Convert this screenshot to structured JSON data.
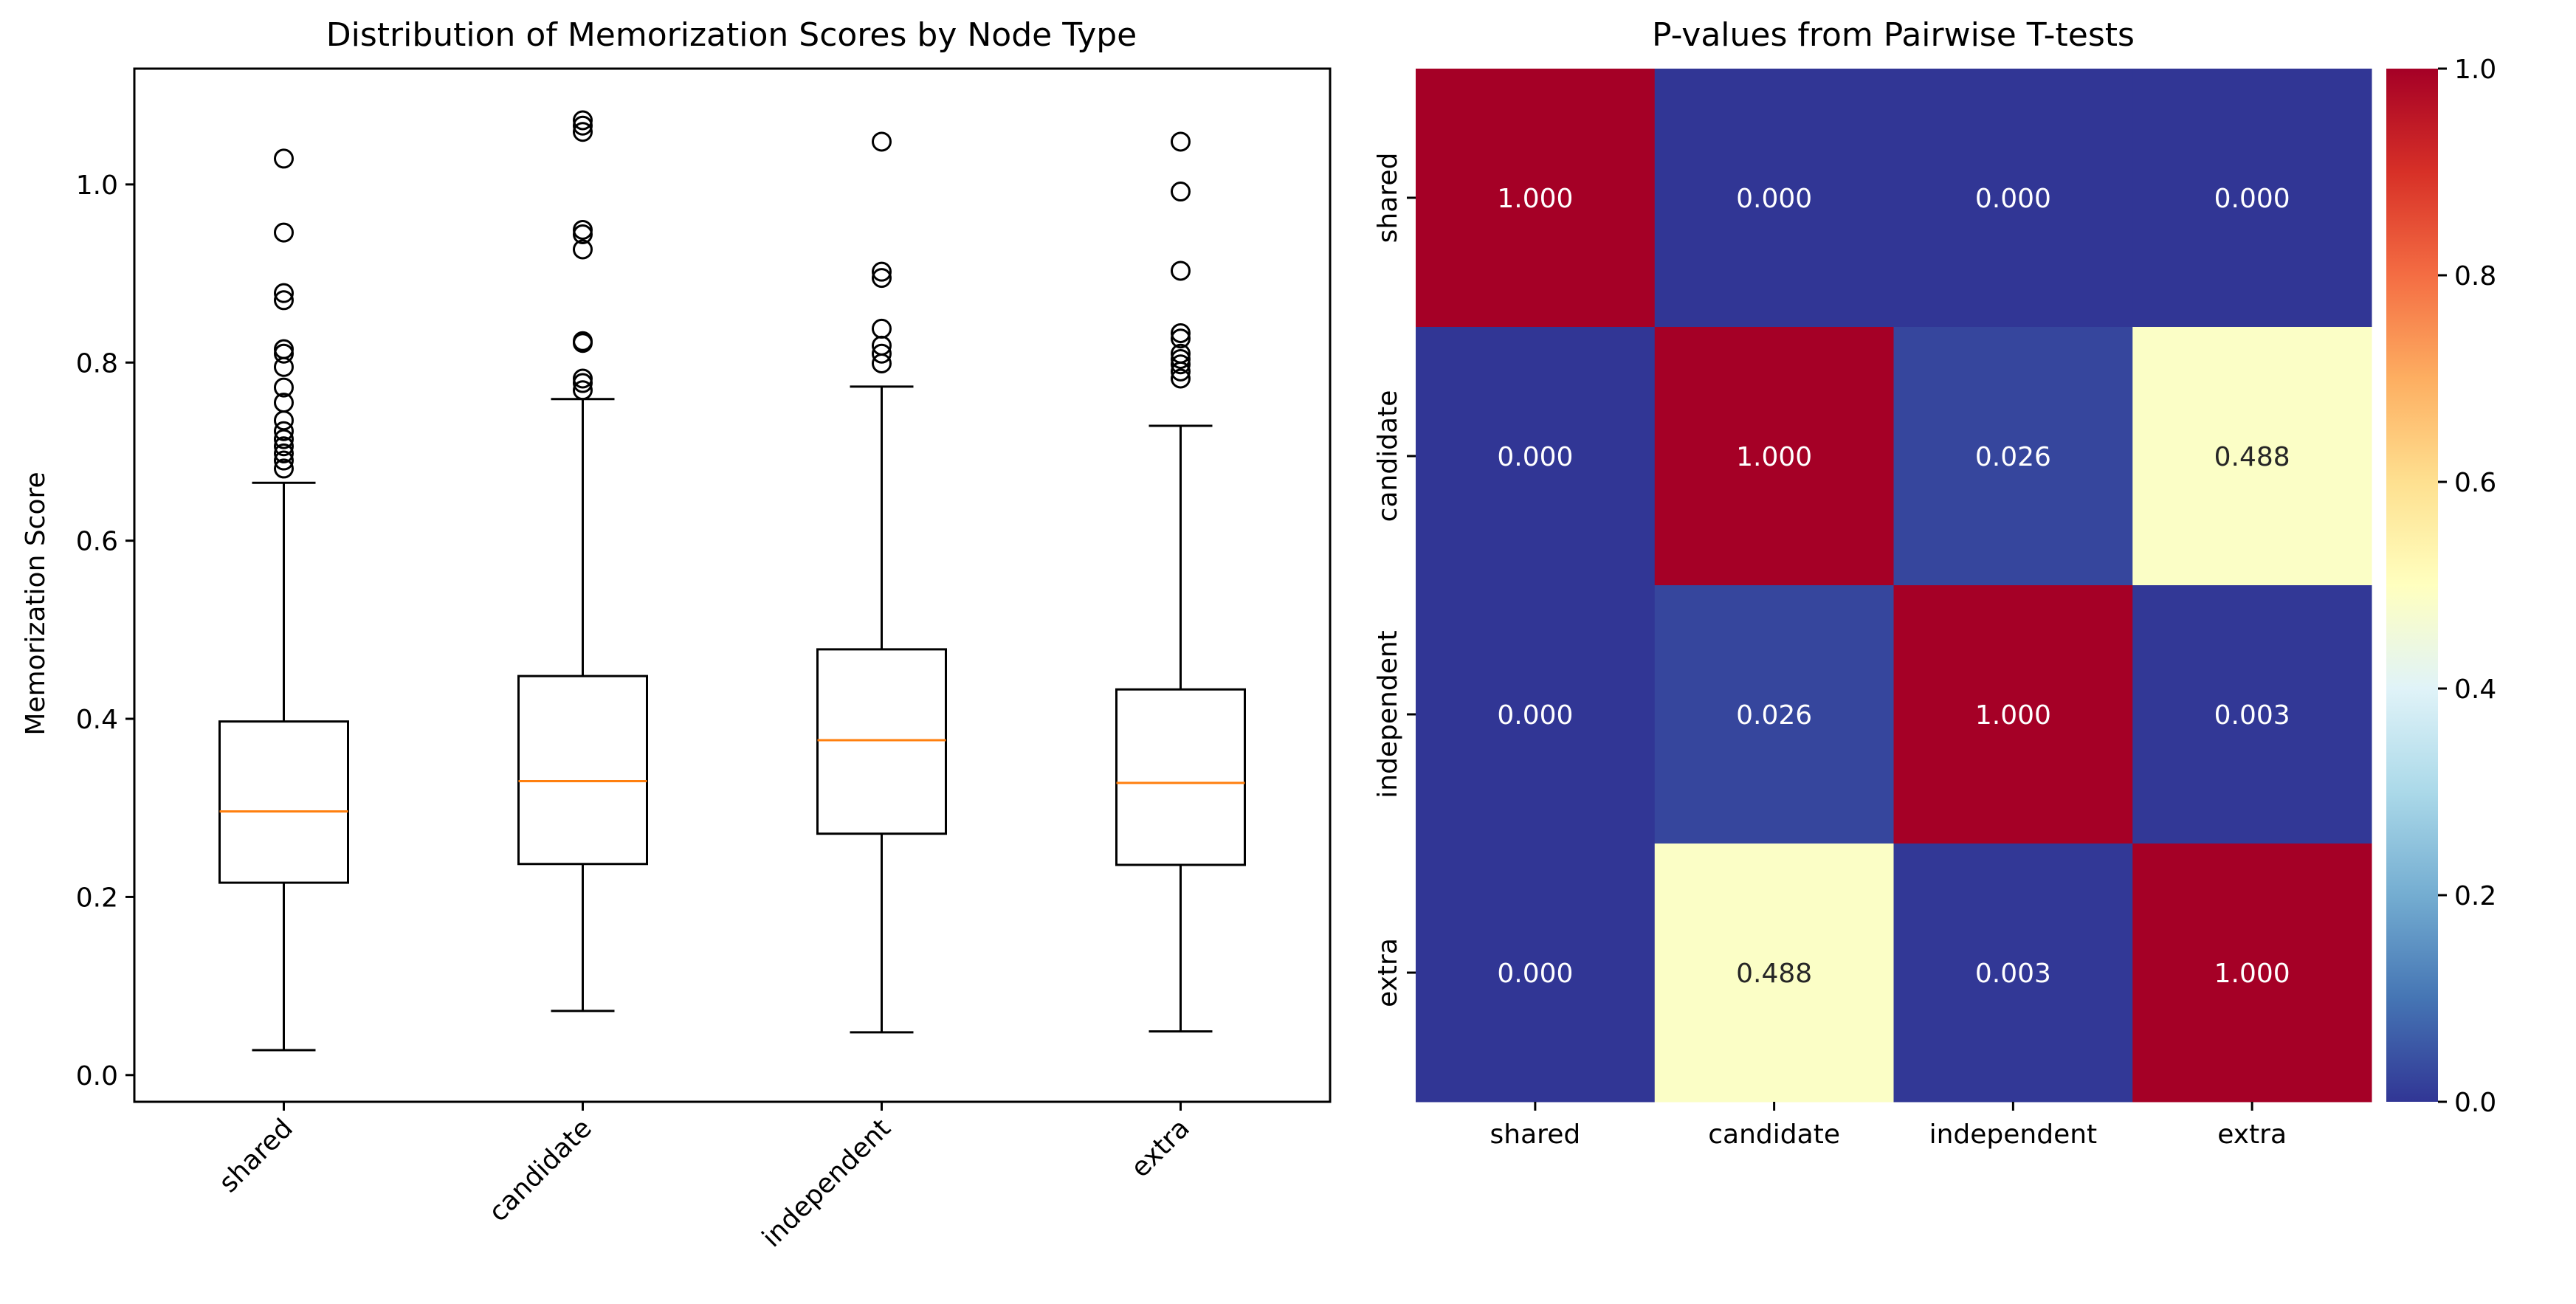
{
  "chart_data": [
    {
      "type": "box",
      "title": "Distribution of Memorization Scores by Node Type",
      "xlabel": "",
      "ylabel": "Memorization Score",
      "ylim": [
        -0.03,
        1.13
      ],
      "yticks": [
        0.0,
        0.2,
        0.4,
        0.6,
        0.8,
        1.0
      ],
      "ytick_labels": [
        "0.0",
        "0.2",
        "0.4",
        "0.6",
        "0.8",
        "1.0"
      ],
      "categories": [
        "shared",
        "candidate",
        "independent",
        "extra"
      ],
      "colors": {
        "box": "#000000",
        "median": "#ff7f0e"
      },
      "boxes": [
        {
          "name": "shared",
          "whisker_low": 0.028,
          "q1": 0.216,
          "median": 0.296,
          "q3": 0.397,
          "whisker_high": 0.665,
          "outliers": [
            0.681,
            0.69,
            0.698,
            0.706,
            0.714,
            0.723,
            0.735,
            0.755,
            0.772,
            0.795,
            0.81,
            0.815,
            0.87,
            0.878,
            0.946,
            1.029
          ]
        },
        {
          "name": "candidate",
          "whisker_low": 0.072,
          "q1": 0.237,
          "median": 0.33,
          "q3": 0.448,
          "whisker_high": 0.759,
          "outliers": [
            0.769,
            0.777,
            0.782,
            0.822,
            0.824,
            0.927,
            0.944,
            0.949,
            1.059,
            1.066,
            1.072
          ]
        },
        {
          "name": "independent",
          "whisker_low": 0.048,
          "q1": 0.271,
          "median": 0.376,
          "q3": 0.478,
          "whisker_high": 0.773,
          "outliers": [
            0.799,
            0.81,
            0.819,
            0.838,
            0.895,
            0.902,
            1.048
          ]
        },
        {
          "name": "extra",
          "whisker_low": 0.049,
          "q1": 0.236,
          "median": 0.328,
          "q3": 0.433,
          "whisker_high": 0.729,
          "outliers": [
            0.782,
            0.79,
            0.798,
            0.804,
            0.81,
            0.827,
            0.833,
            0.903,
            0.992,
            1.048
          ]
        }
      ]
    },
    {
      "type": "heatmap",
      "title": "P-values from Pairwise T-tests",
      "rows": [
        "shared",
        "candidate",
        "independent",
        "extra"
      ],
      "columns": [
        "shared",
        "candidate",
        "independent",
        "extra"
      ],
      "values": [
        [
          1.0,
          0.0,
          0.0,
          0.0
        ],
        [
          0.0,
          1.0,
          0.026,
          0.488
        ],
        [
          0.0,
          0.026,
          1.0,
          0.003
        ],
        [
          0.0,
          0.488,
          0.003,
          1.0
        ]
      ],
      "labels": [
        [
          "1.000",
          "0.000",
          "0.000",
          "0.000"
        ],
        [
          "0.000",
          "1.000",
          "0.026",
          "0.488"
        ],
        [
          "0.000",
          "0.026",
          "1.000",
          "0.003"
        ],
        [
          "0.000",
          "0.488",
          "0.003",
          "1.000"
        ]
      ],
      "colormap": "RdYlBu_r",
      "colorbar": {
        "range": [
          0.0,
          1.0
        ],
        "ticks": [
          0.0,
          0.2,
          0.4,
          0.6,
          0.8,
          1.0
        ],
        "tick_labels": [
          "0.0",
          "0.2",
          "0.4",
          "0.6",
          "0.8",
          "1.0"
        ]
      }
    }
  ]
}
